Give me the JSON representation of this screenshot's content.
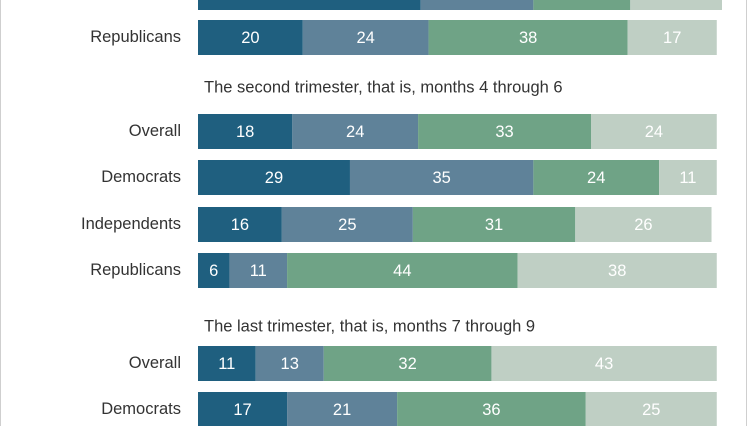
{
  "chart_data": {
    "type": "bar",
    "orientation": "horizontal-stacked-percent",
    "colors": [
      "#1f5f7f",
      "#5f8299",
      "#6fa386",
      "#bfcfc4"
    ],
    "label_color": "#ffffff",
    "row_label_color": "#333333",
    "sections": [
      {
        "title": "",
        "rows": [
          {
            "label": "",
            "values": [
              42.5,
              21.5,
              18.5,
              17.5
            ],
            "show_values": false
          },
          {
            "label": "Republicans",
            "values": [
              20,
              24,
              38,
              17
            ],
            "show_values": true
          }
        ]
      },
      {
        "title": "The second trimester, that is, months 4 through 6",
        "rows": [
          {
            "label": "Overall",
            "values": [
              18,
              24,
              33,
              24
            ],
            "show_values": true
          },
          {
            "label": "Democrats",
            "values": [
              29,
              35,
              24,
              11
            ],
            "show_values": true
          },
          {
            "label": "Independents",
            "values": [
              16,
              25,
              31,
              26
            ],
            "show_values": true
          },
          {
            "label": "Republicans",
            "values": [
              6,
              11,
              44,
              38
            ],
            "show_values": true
          }
        ]
      },
      {
        "title": "The last trimester, that is, months 7 through 9",
        "rows": [
          {
            "label": "Overall",
            "values": [
              11,
              13,
              32,
              43
            ],
            "show_values": true
          },
          {
            "label": "Democrats",
            "values": [
              17,
              21,
              36,
              25
            ],
            "show_values": true
          }
        ]
      }
    ]
  }
}
